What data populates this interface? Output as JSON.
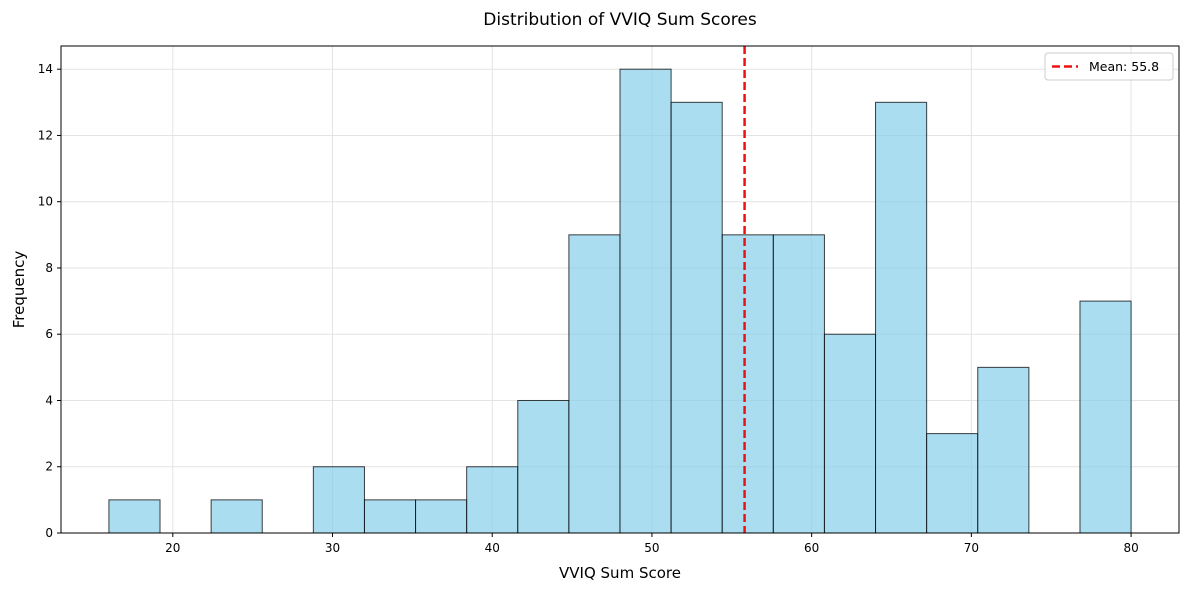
{
  "chart_data": {
    "type": "bar",
    "title": "Distribution of VVIQ Sum Scores",
    "xlabel": "VVIQ Sum Score",
    "ylabel": "Frequency",
    "xlim": [
      13,
      83
    ],
    "ylim": [
      0,
      14.7
    ],
    "xticks": [
      20,
      30,
      40,
      50,
      60,
      70,
      80
    ],
    "yticks": [
      0,
      2,
      4,
      6,
      8,
      10,
      12,
      14
    ],
    "grid": true,
    "legend_position": "top-right",
    "bin_edges": [
      16,
      19.2,
      22.4,
      25.6,
      28.8,
      32,
      35.2,
      38.4,
      41.6,
      44.8,
      48,
      51.2,
      54.4,
      57.6,
      60.8,
      64,
      67.2,
      70.4,
      73.6,
      76.8,
      80
    ],
    "values": [
      1,
      0,
      1,
      0,
      2,
      1,
      1,
      2,
      4,
      9,
      14,
      13,
      9,
      9,
      6,
      13,
      3,
      5,
      0,
      7
    ],
    "bar_color": "#87CEEB",
    "mean": 55.8,
    "mean_color": "#ee1111",
    "legend_label": "Mean: 55.8"
  }
}
